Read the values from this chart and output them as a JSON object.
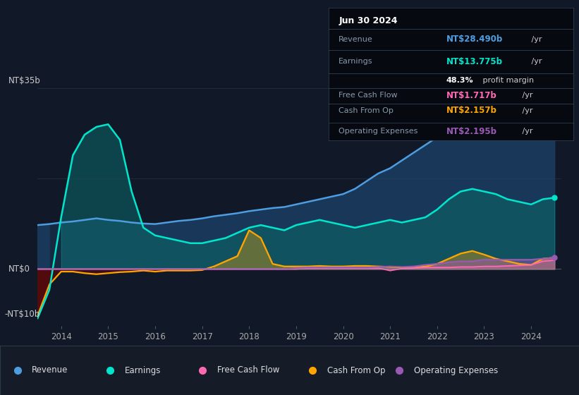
{
  "bg_color": "#111827",
  "plot_bg_color": "#111827",
  "colors": {
    "revenue": "#4d9de0",
    "earnings": "#00e5cc",
    "free_cash_flow": "#ff69b4",
    "cash_from_op": "#ffa500",
    "operating_expenses": "#9b59b6"
  },
  "legend": [
    "Revenue",
    "Earnings",
    "Free Cash Flow",
    "Cash From Op",
    "Operating Expenses"
  ],
  "ylabel_top": "NT$35b",
  "ylabel_zero": "NT$0",
  "ylabel_neg": "-NT$10b",
  "info_box": {
    "date": "Jun 30 2024",
    "revenue_label": "Revenue",
    "revenue_value": "NT$28.490b",
    "revenue_unit": " /yr",
    "earnings_label": "Earnings",
    "earnings_value": "NT$13.775b",
    "earnings_unit": " /yr",
    "margin_value": "48.3%",
    "margin_text": " profit margin",
    "fcf_label": "Free Cash Flow",
    "fcf_value": "NT$1.717b",
    "fcf_unit": " /yr",
    "cfop_label": "Cash From Op",
    "cfop_value": "NT$2.157b",
    "cfop_unit": " /yr",
    "opex_label": "Operating Expenses",
    "opex_value": "NT$2.195b",
    "opex_unit": " /yr"
  },
  "x_years": [
    2013.5,
    2013.75,
    2014.0,
    2014.25,
    2014.5,
    2014.75,
    2015.0,
    2015.25,
    2015.5,
    2015.75,
    2016.0,
    2016.25,
    2016.5,
    2016.75,
    2017.0,
    2017.25,
    2017.5,
    2017.75,
    2018.0,
    2018.25,
    2018.5,
    2018.75,
    2019.0,
    2019.25,
    2019.5,
    2019.75,
    2020.0,
    2020.25,
    2020.5,
    2020.75,
    2021.0,
    2021.25,
    2021.5,
    2021.75,
    2022.0,
    2022.25,
    2022.5,
    2022.75,
    2023.0,
    2023.25,
    2023.5,
    2023.75,
    2024.0,
    2024.25,
    2024.5
  ],
  "revenue": [
    8.5,
    8.7,
    9.0,
    9.2,
    9.5,
    9.8,
    9.5,
    9.3,
    9.0,
    8.8,
    8.7,
    9.0,
    9.3,
    9.5,
    9.8,
    10.2,
    10.5,
    10.8,
    11.2,
    11.5,
    11.8,
    12.0,
    12.5,
    13.0,
    13.5,
    14.0,
    14.5,
    15.5,
    17.0,
    18.5,
    19.5,
    21.0,
    22.5,
    24.0,
    25.5,
    28.0,
    30.5,
    32.0,
    32.5,
    31.0,
    29.5,
    28.0,
    27.5,
    28.0,
    28.5
  ],
  "earnings": [
    -9.5,
    -4.0,
    10.0,
    22.0,
    26.0,
    27.5,
    28.0,
    25.0,
    15.0,
    8.0,
    6.5,
    6.0,
    5.5,
    5.0,
    5.0,
    5.5,
    6.0,
    7.0,
    8.0,
    8.5,
    8.0,
    7.5,
    8.5,
    9.0,
    9.5,
    9.0,
    8.5,
    8.0,
    8.5,
    9.0,
    9.5,
    9.0,
    9.5,
    10.0,
    11.5,
    13.5,
    15.0,
    15.5,
    15.0,
    14.5,
    13.5,
    13.0,
    12.5,
    13.5,
    13.8
  ],
  "free_cash_flow": [
    0.0,
    0.0,
    0.0,
    0.0,
    0.0,
    0.0,
    0.0,
    0.0,
    0.0,
    0.0,
    0.0,
    0.0,
    0.0,
    0.0,
    0.0,
    0.0,
    0.0,
    0.0,
    0.0,
    0.0,
    0.0,
    0.0,
    0.0,
    0.2,
    0.2,
    0.2,
    0.2,
    0.2,
    0.2,
    0.2,
    -0.3,
    0.1,
    0.2,
    0.3,
    0.3,
    0.3,
    0.4,
    0.4,
    0.5,
    0.5,
    0.6,
    0.7,
    0.8,
    1.5,
    1.7
  ],
  "cash_from_op": [
    -9.0,
    -3.0,
    -0.5,
    -0.5,
    -0.8,
    -1.0,
    -0.8,
    -0.6,
    -0.5,
    -0.3,
    -0.5,
    -0.3,
    -0.3,
    -0.3,
    -0.2,
    0.5,
    1.5,
    2.5,
    7.5,
    6.0,
    1.0,
    0.5,
    0.5,
    0.5,
    0.6,
    0.5,
    0.5,
    0.6,
    0.6,
    0.5,
    0.4,
    0.3,
    0.3,
    0.5,
    1.0,
    2.0,
    3.0,
    3.5,
    2.8,
    2.0,
    1.5,
    1.0,
    0.8,
    2.0,
    2.2
  ],
  "operating_expenses": [
    0.0,
    0.0,
    0.0,
    0.0,
    0.0,
    0.0,
    0.0,
    0.0,
    0.0,
    0.0,
    0.0,
    0.0,
    0.0,
    0.0,
    0.0,
    0.0,
    0.0,
    0.0,
    0.0,
    0.0,
    0.0,
    0.0,
    0.2,
    0.3,
    0.3,
    0.3,
    0.3,
    0.3,
    0.3,
    0.4,
    0.5,
    0.4,
    0.5,
    0.8,
    1.0,
    1.3,
    1.5,
    1.5,
    1.8,
    1.8,
    1.8,
    1.8,
    1.8,
    2.0,
    2.2
  ]
}
